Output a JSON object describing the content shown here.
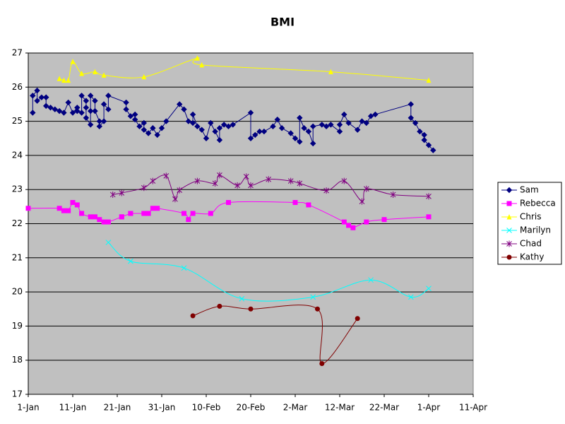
{
  "chart_data": {
    "type": "line",
    "title": "BMI",
    "xlim": [
      1,
      101
    ],
    "xticks": [
      {
        "value": 1,
        "label": "1-Jan"
      },
      {
        "value": 11,
        "label": "11-Jan"
      },
      {
        "value": 21,
        "label": "21-Jan"
      },
      {
        "value": 31,
        "label": "31-Jan"
      },
      {
        "value": 41,
        "label": "10-Feb"
      },
      {
        "value": 51,
        "label": "20-Feb"
      },
      {
        "value": 61,
        "label": "2-Mar"
      },
      {
        "value": 71,
        "label": "12-Mar"
      },
      {
        "value": 81,
        "label": "22-Mar"
      },
      {
        "value": 91,
        "label": "1-Apr"
      },
      {
        "value": 101,
        "label": "11-Apr"
      }
    ],
    "ylim": [
      17,
      27
    ],
    "yticks": [
      17,
      18,
      19,
      20,
      21,
      22,
      23,
      24,
      25,
      26,
      27
    ],
    "grid": true,
    "legend": "right",
    "plot_background": "#c0c0c0",
    "series": [
      {
        "name": "Sam",
        "color": "#000080",
        "marker": "diamond",
        "smooth": false,
        "x": [
          2,
          2,
          3,
          3,
          4,
          5,
          5,
          5,
          6,
          7,
          8,
          9,
          10,
          11,
          12,
          12,
          13,
          13,
          14,
          14,
          14,
          15,
          15,
          15,
          16,
          16,
          17,
          17,
          18,
          18,
          19,
          19,
          23,
          23,
          24,
          25,
          25,
          26,
          27,
          27,
          28,
          29,
          30,
          31,
          32,
          35,
          36,
          37,
          38,
          38,
          39,
          40,
          41,
          42,
          43,
          44,
          44,
          45,
          46,
          47,
          51,
          51,
          52,
          53,
          54,
          56,
          57,
          58,
          60,
          61,
          62,
          62,
          63,
          64,
          65,
          65,
          67,
          68,
          69,
          71,
          71,
          72,
          73,
          75,
          76,
          77,
          78,
          79,
          87,
          87,
          88,
          89,
          90,
          90,
          91,
          92
        ],
        "values": [
          25.25,
          25.75,
          25.9,
          25.6,
          25.7,
          25.7,
          25.7,
          25.45,
          25.4,
          25.35,
          25.3,
          25.25,
          25.55,
          25.25,
          25.4,
          25.3,
          25.25,
          25.75,
          25.6,
          25.4,
          25.1,
          24.9,
          25.3,
          25.75,
          25.6,
          25.3,
          25.0,
          24.85,
          25.0,
          25.5,
          25.35,
          25.75,
          25.55,
          25.35,
          25.15,
          25.2,
          25.05,
          24.85,
          24.95,
          24.75,
          24.65,
          24.8,
          24.6,
          24.8,
          25.0,
          25.5,
          25.35,
          25.0,
          24.95,
          25.2,
          24.85,
          24.75,
          24.5,
          24.95,
          24.7,
          24.45,
          24.8,
          24.9,
          24.85,
          24.9,
          25.25,
          24.5,
          24.6,
          24.7,
          24.7,
          24.85,
          25.05,
          24.8,
          24.65,
          24.5,
          24.4,
          25.1,
          24.8,
          24.7,
          24.35,
          24.85,
          24.9,
          24.85,
          24.9,
          24.7,
          24.9,
          25.2,
          24.95,
          24.75,
          25.0,
          24.95,
          25.15,
          25.2,
          25.5,
          25.1,
          24.95,
          24.7,
          24.6,
          24.45,
          24.3,
          24.15
        ]
      },
      {
        "name": "Rebecca",
        "color": "#ff00ff",
        "marker": "square",
        "smooth": true,
        "x": [
          1,
          8,
          9,
          10,
          11,
          12,
          13,
          15,
          16,
          17,
          18,
          19,
          22,
          22,
          24,
          24,
          27,
          28,
          29,
          30,
          36,
          37,
          38,
          42,
          46,
          61,
          64,
          72,
          73,
          74,
          77,
          81,
          91
        ],
        "values": [
          22.45,
          22.45,
          22.38,
          22.38,
          22.62,
          22.55,
          22.3,
          22.2,
          22.2,
          22.12,
          22.05,
          22.05,
          22.2,
          22.2,
          22.3,
          22.3,
          22.3,
          22.3,
          22.45,
          22.45,
          22.3,
          22.12,
          22.3,
          22.3,
          22.62,
          22.62,
          22.55,
          22.05,
          21.95,
          21.88,
          22.05,
          22.12,
          22.2
        ]
      },
      {
        "name": "Chris",
        "color": "#ffff00",
        "marker": "triangle",
        "smooth": true,
        "x": [
          8,
          9,
          10,
          11,
          13,
          16,
          18,
          27,
          39,
          40,
          69,
          91
        ],
        "values": [
          26.25,
          26.2,
          26.2,
          26.75,
          26.4,
          26.45,
          26.35,
          26.3,
          26.85,
          26.65,
          26.45,
          26.2
        ]
      },
      {
        "name": "Marilyn",
        "color": "#00ffff",
        "marker": "x",
        "smooth": true,
        "x": [
          19,
          24,
          36,
          49,
          65,
          78,
          87,
          91
        ],
        "values": [
          21.45,
          20.9,
          20.7,
          19.8,
          19.85,
          20.35,
          19.85,
          20.1
        ]
      },
      {
        "name": "Chad",
        "color": "#800080",
        "marker": "star",
        "smooth": true,
        "x": [
          20,
          22,
          27,
          29,
          32,
          34,
          35,
          39,
          43,
          44,
          48,
          50,
          51,
          55,
          60,
          62,
          68,
          72,
          76,
          77,
          83,
          91
        ],
        "values": [
          22.85,
          22.9,
          23.05,
          23.25,
          23.4,
          22.72,
          22.98,
          23.25,
          23.18,
          23.42,
          23.12,
          23.38,
          23.12,
          23.3,
          23.25,
          23.18,
          22.97,
          23.25,
          22.65,
          23.02,
          22.85,
          22.8
        ]
      },
      {
        "name": "Kathy",
        "color": "#800000",
        "marker": "circle",
        "smooth": true,
        "x": [
          38,
          44,
          51,
          66,
          67,
          75
        ],
        "values": [
          19.3,
          19.58,
          19.5,
          19.5,
          17.9,
          19.22
        ]
      }
    ]
  }
}
